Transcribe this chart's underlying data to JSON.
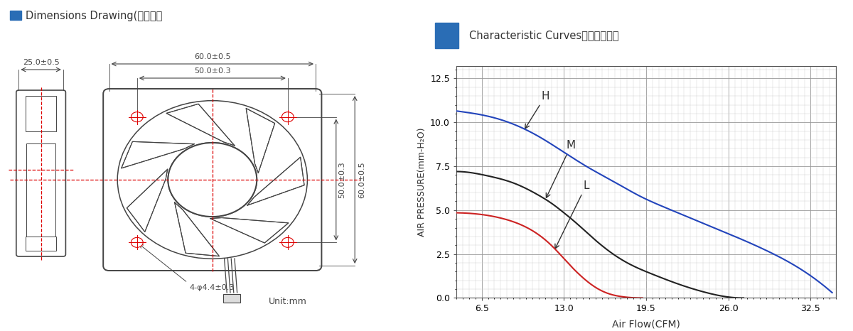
{
  "title_left": "Dimensions Drawing(外观图）",
  "title_right": "Characteristic Curves（特性曲线）",
  "title_color": "#333333",
  "square_color": "#2a6db5",
  "bg_color": "#ffffff",
  "dim_color": "#444444",
  "red_line_color": "#dd0000",
  "dim_text_color": "#444444",
  "curve_H_color": "#2244bb",
  "curve_M_color": "#222222",
  "curve_L_color": "#cc2222",
  "xlabel": "Air Flow(CFM)",
  "ylabel": "AIR PRESSURE(mm-H₂O)",
  "xticks": [
    6.5,
    13.0,
    19.5,
    26.0,
    32.5
  ],
  "yticks": [
    0.0,
    2.5,
    5.0,
    7.5,
    10.0,
    12.5
  ],
  "xmin": 4.5,
  "xmax": 34.5,
  "ymin": 0.0,
  "ymax": 13.2,
  "H_x": [
    4.5,
    5.5,
    7.0,
    9.0,
    11.0,
    13.0,
    15.0,
    17.0,
    19.0,
    21.0,
    23.0,
    25.0,
    27.0,
    29.0,
    31.0,
    33.0,
    34.2
  ],
  "H_y": [
    10.65,
    10.55,
    10.35,
    9.9,
    9.2,
    8.3,
    7.4,
    6.6,
    5.8,
    5.15,
    4.55,
    3.95,
    3.35,
    2.7,
    1.95,
    1.0,
    0.3
  ],
  "M_x": [
    4.5,
    5.5,
    7.0,
    9.0,
    11.0,
    12.0,
    13.0,
    14.0,
    15.0,
    16.5,
    18.0,
    20.0,
    22.0,
    24.0,
    26.0,
    27.2
  ],
  "M_y": [
    7.2,
    7.15,
    6.95,
    6.55,
    5.85,
    5.4,
    4.85,
    4.25,
    3.6,
    2.7,
    2.0,
    1.35,
    0.8,
    0.35,
    0.05,
    0.0
  ],
  "L_x": [
    4.5,
    5.5,
    6.5,
    8.0,
    9.5,
    11.0,
    12.0,
    12.8,
    13.5,
    14.5,
    15.5,
    16.5,
    17.5,
    18.5,
    19.2
  ],
  "L_y": [
    4.85,
    4.82,
    4.75,
    4.55,
    4.2,
    3.6,
    3.0,
    2.4,
    1.85,
    1.15,
    0.6,
    0.25,
    0.08,
    0.01,
    0.0
  ],
  "unit_text": "Unit:mm",
  "dim_25": "25.0±0.5",
  "dim_60h": "60.0±0.5",
  "dim_50h": "50.0±0.3",
  "dim_60v": "60.0±0.5",
  "dim_50v": "50.0±0.3",
  "dim_hole": "4-φ4.4±0.3"
}
